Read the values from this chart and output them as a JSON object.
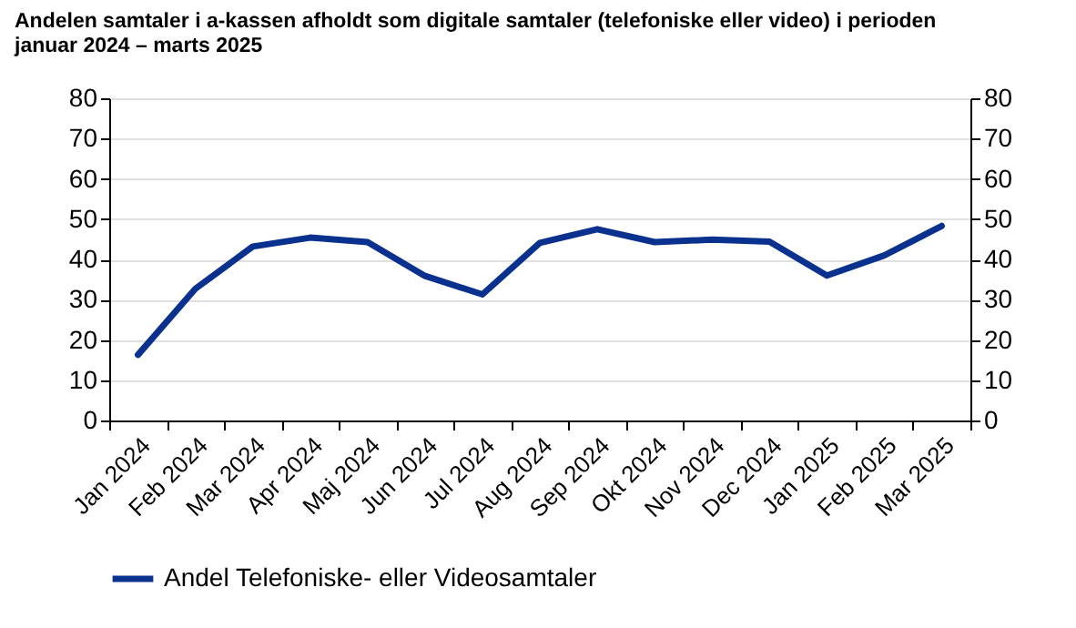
{
  "chart_data": {
    "type": "line",
    "title": "Andelen samtaler i a-kassen afholdt som digitale samtaler (telefoniske eller video) i perioden januar 2024 – marts 2025",
    "categories": [
      "Jan 2024",
      "Feb 2024",
      "Mar 2024",
      "Apr 2024",
      "Maj 2024",
      "Jun 2024",
      "Jul 2024",
      "Aug 2024",
      "Sep 2024",
      "Okt 2024",
      "Nov 2024",
      "Dec 2024",
      "Jan 2025",
      "Feb 2025",
      "Mar 2025"
    ],
    "series": [
      {
        "name": "Andel Telefoniske- eller Videosamtaler",
        "color": "#0b318f",
        "values": [
          16.3,
          32.7,
          43.2,
          45.4,
          44.3,
          35.9,
          31.3,
          44.1,
          47.5,
          44.3,
          44.9,
          44.4,
          36,
          41,
          48.3
        ]
      }
    ],
    "ylim": [
      0,
      80
    ],
    "yticks": [
      0,
      10,
      20,
      30,
      40,
      50,
      60,
      70,
      80
    ],
    "y2lim": [
      0,
      80
    ],
    "y2ticks": [
      0,
      10,
      20,
      30,
      40,
      50,
      60,
      70,
      80
    ],
    "grid": "y",
    "legend": "bottom",
    "marker": "none",
    "line_style": "solid"
  }
}
